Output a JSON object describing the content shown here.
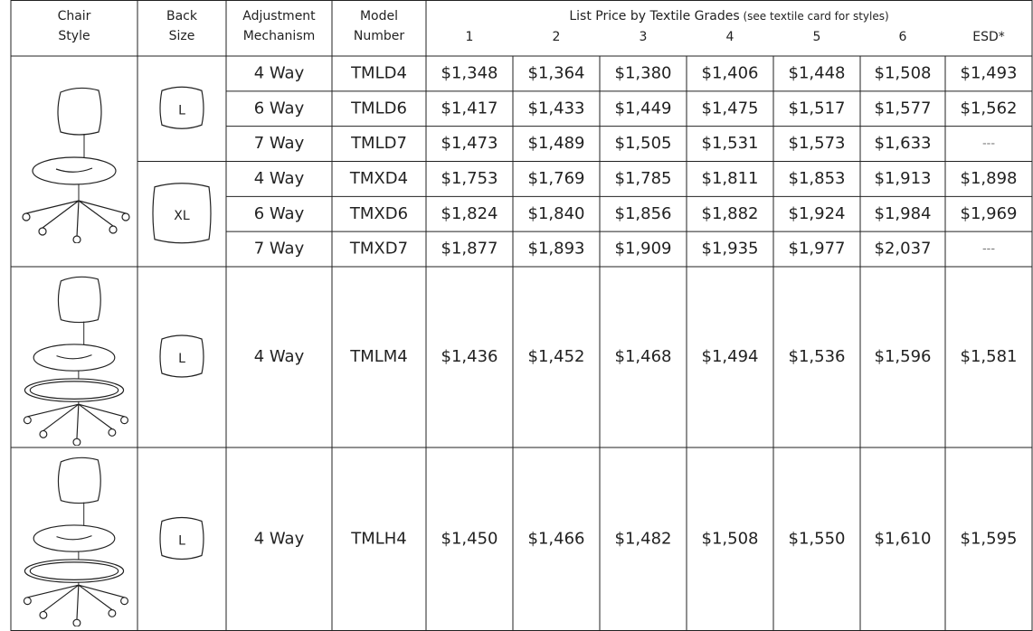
{
  "header": {
    "columns": [
      [
        "Chair",
        "Style"
      ],
      [
        "Back",
        "Size"
      ],
      [
        "Adjustment",
        "Mechanism"
      ],
      [
        "Model",
        "Number"
      ]
    ],
    "price_title": "List Price by Textile Grades",
    "price_note": " (see textile card for styles)",
    "grades": [
      "1",
      "2",
      "3",
      "4",
      "5",
      "6",
      "ESD*"
    ]
  },
  "sections": [
    {
      "back_sizes": [
        {
          "label": "L",
          "rows": [
            {
              "mechanism": "4 Way",
              "model": "TMLD4",
              "prices": [
                "$1,348",
                "$1,364",
                "$1,380",
                "$1,406",
                "$1,448",
                "$1,508",
                "$1,493"
              ]
            },
            {
              "mechanism": "6 Way",
              "model": "TMLD6",
              "prices": [
                "$1,417",
                "$1,433",
                "$1,449",
                "$1,475",
                "$1,517",
                "$1,577",
                "$1,562"
              ]
            },
            {
              "mechanism": "7 Way",
              "model": "TMLD7",
              "prices": [
                "$1,473",
                "$1,489",
                "$1,505",
                "$1,531",
                "$1,573",
                "$1,633",
                "---"
              ]
            }
          ]
        },
        {
          "label": "XL",
          "rows": [
            {
              "mechanism": "4 Way",
              "model": "TMXD4",
              "prices": [
                "$1,753",
                "$1,769",
                "$1,785",
                "$1,811",
                "$1,853",
                "$1,913",
                "$1,898"
              ]
            },
            {
              "mechanism": "6 Way",
              "model": "TMXD6",
              "prices": [
                "$1,824",
                "$1,840",
                "$1,856",
                "$1,882",
                "$1,924",
                "$1,984",
                "$1,969"
              ]
            },
            {
              "mechanism": "7 Way",
              "model": "TMXD7",
              "prices": [
                "$1,877",
                "$1,893",
                "$1,909",
                "$1,935",
                "$1,977",
                "$2,037",
                "---"
              ]
            }
          ]
        }
      ]
    },
    {
      "back_sizes": [
        {
          "label": "L",
          "rows": [
            {
              "mechanism": "4 Way",
              "model": "TMLM4",
              "prices": [
                "$1,436",
                "$1,452",
                "$1,468",
                "$1,494",
                "$1,536",
                "$1,596",
                "$1,581"
              ]
            }
          ]
        }
      ]
    },
    {
      "back_sizes": [
        {
          "label": "L",
          "rows": [
            {
              "mechanism": "4 Way",
              "model": "TMLH4",
              "prices": [
                "$1,450",
                "$1,466",
                "$1,482",
                "$1,508",
                "$1,550",
                "$1,610",
                "$1,595"
              ]
            }
          ]
        }
      ]
    }
  ]
}
